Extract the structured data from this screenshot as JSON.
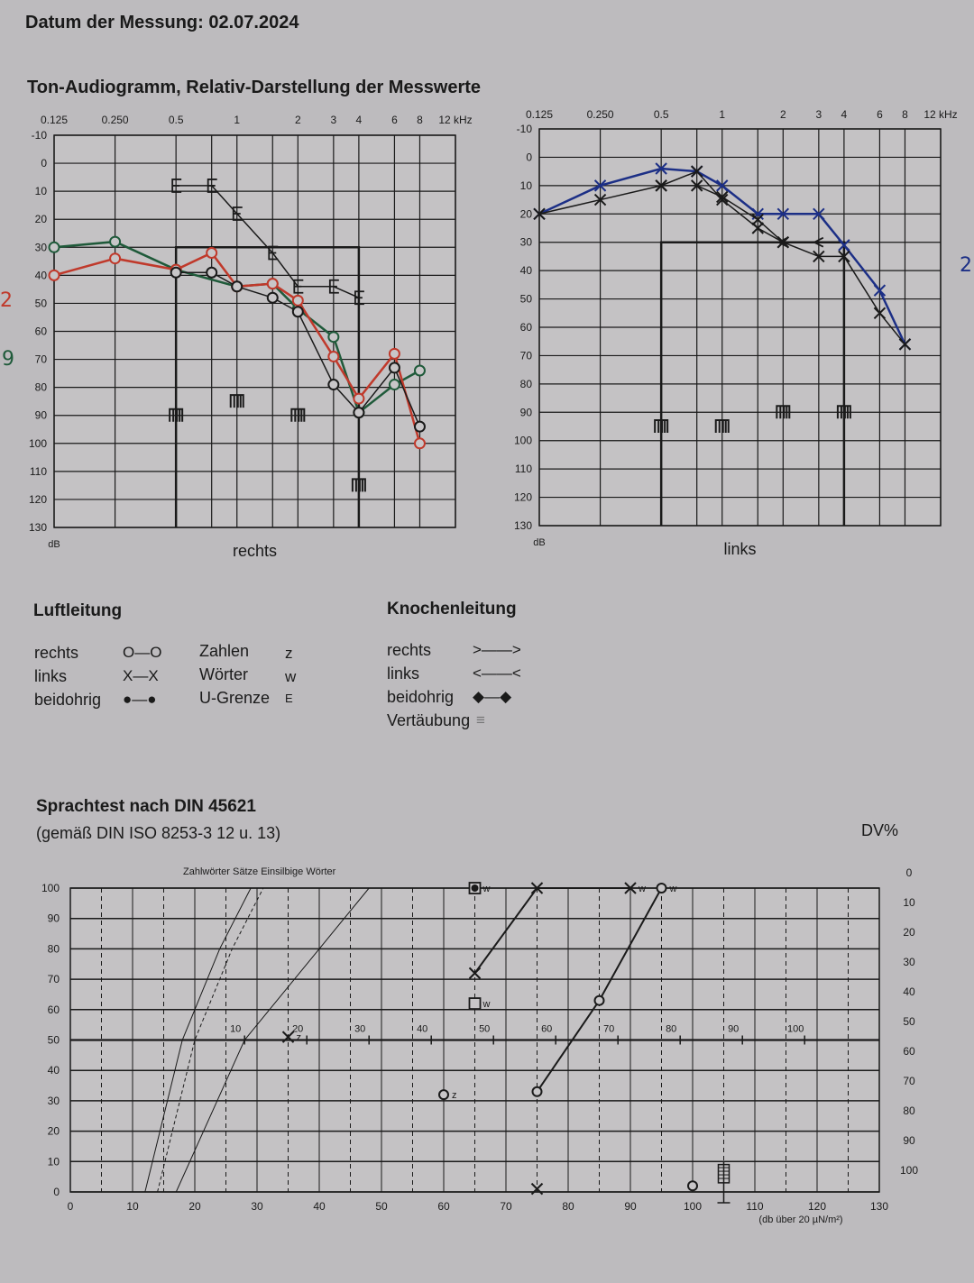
{
  "header": {
    "date_label": "Datum der Messung: 02.07.2024",
    "audiogram_title": "Ton-Audiogramm, Relativ-Darstellung der Messwerte"
  },
  "legend": {
    "air_title": "Luftleitung",
    "air_rows": [
      {
        "label": "rechts",
        "symbol": "O—O"
      },
      {
        "label": "links",
        "symbol": "X—X"
      },
      {
        "label": "beidohrig",
        "symbol": "●—●"
      }
    ],
    "test_rows": [
      {
        "label": "Zahlen",
        "symbol": "z"
      },
      {
        "label": "Wörter",
        "symbol": "w"
      },
      {
        "label": "U-Grenze",
        "symbol": "E"
      }
    ],
    "bone_title": "Knochenleitung",
    "bone_rows": [
      {
        "label": "rechts",
        "symbol": ">——>"
      },
      {
        "label": "links",
        "symbol": "<——<"
      },
      {
        "label": "beidohrig",
        "symbol": "◆—◆"
      },
      {
        "label": "Vertäubung",
        "symbol": "≡"
      }
    ]
  },
  "speech": {
    "title": "Sprachtest nach DIN 45621",
    "subtitle": "(gemäß DIN ISO 8253-3 12 u. 13)",
    "dv_label": "DV%"
  },
  "handwritten": {
    "right_a": "2",
    "right_b": "9",
    "left_a": "2"
  },
  "colors": {
    "paper": "#bdbbbe",
    "red": "#c0392b",
    "green": "#1f5a3a",
    "blue": "#1c2f86",
    "ink": "#1a1a1a"
  },
  "chart_data": [
    {
      "type": "line",
      "title": "rechts",
      "xlabel": "kHz",
      "ylabel": "dB",
      "x_scale": "log2",
      "x_grid": [
        0.125,
        0.25,
        0.5,
        0.75,
        1,
        1.5,
        2,
        3,
        4,
        6,
        8,
        12
      ],
      "x_tick_labels": [
        [
          "0.125",
          0.125
        ],
        [
          "0.250",
          0.25
        ],
        [
          "0.5",
          0.5
        ],
        [
          "1",
          1
        ],
        [
          "2",
          2
        ],
        [
          "3",
          3
        ],
        [
          "4",
          4
        ],
        [
          "6",
          6
        ],
        [
          "8",
          8
        ],
        [
          "12 kHz",
          12
        ]
      ],
      "y_ticks": [
        "-10",
        "0",
        "10",
        "20",
        "30",
        "40",
        "50",
        "60",
        "70",
        "80",
        "90",
        "100",
        "110",
        "120",
        "130"
      ],
      "ylim": [
        -10,
        130
      ],
      "y_inverted": true,
      "series": [
        {
          "name": "Luftleitung rechts (grün)",
          "color": "#1f5a3a",
          "marker": "circle",
          "x": [
            0.125,
            0.25,
            0.5,
            1,
            1.5,
            2,
            3,
            4,
            6,
            8
          ],
          "y": [
            30,
            28,
            38,
            44,
            43,
            52,
            62,
            89,
            79,
            74
          ]
        },
        {
          "name": "Luftleitung rechts (rot)",
          "color": "#c0392b",
          "marker": "circle",
          "x": [
            0.125,
            0.25,
            0.5,
            0.75,
            1,
            1.5,
            2,
            3,
            4,
            6,
            8
          ],
          "y": [
            40,
            34,
            38,
            32,
            44,
            43,
            49,
            69,
            84,
            68,
            100
          ]
        },
        {
          "name": "Luftleitung rechts (schwarz)",
          "color": "#1a1a1a",
          "marker": "circle",
          "x": [
            0.5,
            0.75,
            1,
            1.5,
            2,
            3,
            4,
            6,
            8
          ],
          "y": [
            39,
            39,
            44,
            48,
            53,
            79,
            89,
            73,
            94
          ]
        },
        {
          "name": "U-Grenze",
          "color": "#1a1a1a",
          "marker": "E",
          "x": [
            0.5,
            0.75,
            1,
            1.5,
            2,
            3,
            4
          ],
          "y": [
            8,
            8,
            18,
            32,
            44,
            44,
            48
          ]
        }
      ],
      "masking": {
        "x": [
          0.5,
          1,
          2,
          4
        ],
        "y": [
          90,
          85,
          90,
          115
        ]
      },
      "bracket": {
        "x_from": 0.5,
        "x_to": 4,
        "level": 30
      }
    },
    {
      "type": "line",
      "title": "links",
      "xlabel": "kHz",
      "ylabel": "dB",
      "x_scale": "log2",
      "x_grid": [
        0.125,
        0.25,
        0.5,
        0.75,
        1,
        1.5,
        2,
        3,
        4,
        6,
        8,
        12
      ],
      "x_tick_labels": [
        [
          "0.125",
          0.125
        ],
        [
          "0.250",
          0.25
        ],
        [
          "0.5",
          0.5
        ],
        [
          "1",
          1
        ],
        [
          "2",
          2
        ],
        [
          "3",
          3
        ],
        [
          "4",
          4
        ],
        [
          "6",
          6
        ],
        [
          "8",
          8
        ],
        [
          "12 kHz",
          12
        ]
      ],
      "y_ticks": [
        "-10",
        "0",
        "10",
        "20",
        "30",
        "40",
        "50",
        "60",
        "70",
        "80",
        "90",
        "100",
        "110",
        "120",
        "130"
      ],
      "ylim": [
        -10,
        130
      ],
      "y_inverted": true,
      "series": [
        {
          "name": "Luftleitung links (blau)",
          "color": "#1c2f86",
          "marker": "x",
          "x": [
            0.125,
            0.25,
            0.5,
            0.75,
            1,
            1.5,
            2,
            3,
            4,
            6,
            8
          ],
          "y": [
            20,
            10,
            4,
            5,
            10,
            20,
            20,
            20,
            31,
            47,
            66
          ]
        },
        {
          "name": "Luftleitung links (schwarz)",
          "color": "#1a1a1a",
          "marker": "x",
          "x": [
            0.125,
            0.25,
            0.5,
            0.75,
            1,
            1.5,
            2,
            3,
            4,
            6,
            8
          ],
          "y": [
            20,
            15,
            10,
            5,
            15,
            25,
            30,
            35,
            35,
            55,
            66
          ]
        },
        {
          "name": "Luftleitung links (schwarz 2)",
          "color": "#1a1a1a",
          "marker": "x",
          "x": [
            0.5,
            0.75,
            1,
            1.5,
            2
          ],
          "y": [
            10,
            10,
            14,
            22,
            30
          ]
        },
        {
          "name": "Knochenleitung links",
          "color": "#1a1a1a",
          "marker": "lt",
          "x": [
            2,
            3
          ],
          "y": [
            30,
            30
          ]
        }
      ],
      "masking": {
        "x": [
          0.5,
          1,
          2,
          4
        ],
        "y": [
          95,
          95,
          90,
          90
        ]
      },
      "bracket": {
        "x_from": 0.5,
        "x_to": 4,
        "level": 30
      }
    },
    {
      "type": "line",
      "title": "Zahlwörter Sätze Einsilbige Wörter",
      "xlabel": "(db über 20 µN/m²)",
      "ylabel": "%",
      "xlim": [
        0,
        130
      ],
      "ylim": [
        0,
        100
      ],
      "x_ticks": [
        "0",
        "10",
        "20",
        "30",
        "40",
        "50",
        "60",
        "70",
        "80",
        "90",
        "100",
        "110",
        "120",
        "130"
      ],
      "y_ticks": [
        "0",
        "10",
        "20",
        "30",
        "40",
        "50",
        "60",
        "70",
        "80",
        "90",
        "100"
      ],
      "dv_ticks": [
        "0",
        "10",
        "20",
        "30",
        "40",
        "50",
        "60",
        "70",
        "80",
        "90",
        "100"
      ],
      "hl_ticks": [
        "10",
        "20",
        "30",
        "40",
        "50",
        "60",
        "70",
        "80",
        "90",
        "100"
      ],
      "reference_curves": [
        {
          "name": "Zahlwörter",
          "style": "solid",
          "x": [
            12,
            18,
            24,
            29
          ],
          "y": [
            0,
            50,
            80,
            100
          ]
        },
        {
          "name": "Sätze",
          "style": "dashed",
          "x": [
            14,
            20,
            26,
            31
          ],
          "y": [
            0,
            50,
            80,
            100
          ]
        },
        {
          "name": "Einsilbige Wörter",
          "style": "solid",
          "x": [
            17,
            28,
            40,
            48
          ],
          "y": [
            0,
            50,
            80,
            100
          ]
        }
      ],
      "series": [
        {
          "name": "Wörter rechts",
          "marker": "circle",
          "label": "w",
          "x": [
            75,
            85,
            95
          ],
          "y": [
            33,
            63,
            100
          ]
        },
        {
          "name": "Wörter links",
          "marker": "x",
          "label": "w",
          "x": [
            65,
            75,
            90
          ],
          "y": [
            72,
            100,
            100
          ]
        },
        {
          "name": "Zahlen links",
          "marker": "x",
          "label": "z",
          "x": [
            35
          ],
          "y": [
            51
          ]
        },
        {
          "name": "Zahlen rechts",
          "marker": "circle",
          "label": "z",
          "x": [
            60
          ],
          "y": [
            32
          ]
        },
        {
          "name": "Wörter beidohrig",
          "marker": "square",
          "label": "w",
          "x": [
            65
          ],
          "y": [
            62
          ]
        },
        {
          "name": "Wörter beidohrig (gefüllt)",
          "marker": "square-dot",
          "label": "w",
          "x": [
            65
          ],
          "y": [
            100
          ]
        },
        {
          "name": "Einzelwerte rechts",
          "marker": "circle",
          "label": "",
          "x": [
            100
          ],
          "y": [
            2
          ]
        },
        {
          "name": "Einzelwerte links",
          "marker": "x",
          "label": "",
          "x": [
            75
          ],
          "y": [
            1
          ]
        }
      ],
      "masking_level": 105
    }
  ]
}
